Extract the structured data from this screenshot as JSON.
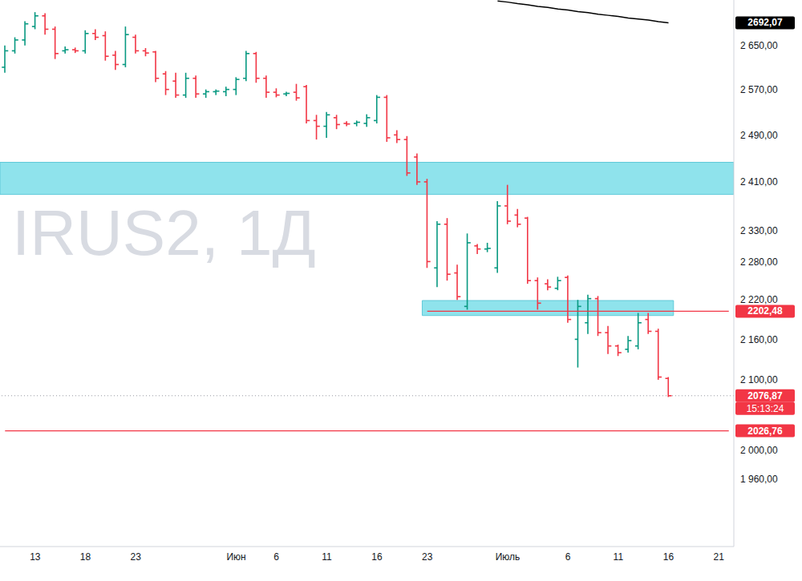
{
  "chart_data": {
    "type": "ohlc",
    "title": "IRUS2, 1Д",
    "categories": [
      null,
      null,
      null,
      "13",
      null,
      null,
      null,
      null,
      "18",
      null,
      null,
      null,
      null,
      "23",
      null,
      null,
      null,
      null,
      null,
      null,
      null,
      null,
      null,
      "Июн",
      null,
      null,
      null,
      "6",
      null,
      null,
      null,
      null,
      "11",
      null,
      null,
      null,
      null,
      "16",
      null,
      null,
      null,
      null,
      "23",
      null,
      null,
      null,
      null,
      null,
      null,
      null,
      "Июль",
      null,
      null,
      null,
      null,
      null,
      "6",
      null,
      null,
      null,
      null,
      "11",
      null,
      null,
      null,
      null,
      "16",
      null,
      null,
      null,
      null,
      "21",
      null
    ],
    "open": [
      2610,
      2640,
      2660,
      2685,
      2705,
      2680,
      2640,
      2642,
      2640,
      2672,
      2668,
      2632,
      2615,
      2665,
      2640,
      2638,
      2598,
      2585,
      2560,
      2590,
      2562,
      2566,
      2566,
      2570,
      2590,
      2635,
      2590,
      2565,
      2562,
      2565,
      2575,
      2515,
      2505,
      2520,
      2510,
      2510,
      2510,
      2515,
      2556,
      2490,
      2482,
      2452,
      2410,
      2270,
      2340,
      2262,
      2210,
      2305,
      2300,
      2270,
      2370,
      2355,
      2350,
      2250,
      2245,
      2238,
      2255,
      2160,
      2185,
      2222,
      2170,
      2150,
      2145,
      2150,
      2190,
      2172,
      2102,
      null,
      null,
      null,
      null,
      null,
      null
    ],
    "high": [
      2650,
      2665,
      2695,
      2712,
      2710,
      2685,
      2648,
      2646,
      2678,
      2680,
      2676,
      2640,
      2685,
      2670,
      2645,
      2640,
      2603,
      2600,
      2600,
      2595,
      2570,
      2570,
      2575,
      2592,
      2640,
      2638,
      2595,
      2572,
      2566,
      2580,
      2578,
      2525,
      2530,
      2525,
      2514,
      2515,
      2526,
      2560,
      2560,
      2498,
      2488,
      2458,
      2415,
      2345,
      2350,
      2275,
      2325,
      2308,
      2310,
      2378,
      2405,
      2365,
      2352,
      2255,
      2252,
      2256,
      2258,
      2220,
      2228,
      2226,
      2180,
      2152,
      2165,
      2200,
      2200,
      2176,
      2104,
      null,
      null,
      null,
      null,
      null,
      null
    ],
    "low": [
      2600,
      2635,
      2650,
      2680,
      2670,
      2625,
      2635,
      2636,
      2635,
      2660,
      2622,
      2605,
      2610,
      2635,
      2630,
      2583,
      2560,
      2555,
      2555,
      2555,
      2555,
      2560,
      2558,
      2560,
      2585,
      2582,
      2555,
      2556,
      2558,
      2550,
      2510,
      2482,
      2485,
      2500,
      2505,
      2505,
      2504,
      2510,
      2478,
      2476,
      2420,
      2405,
      2270,
      2240,
      2250,
      2220,
      2205,
      2292,
      2295,
      2262,
      2340,
      2335,
      2245,
      2205,
      2235,
      2235,
      2185,
      2118,
      2168,
      2165,
      2138,
      2135,
      2140,
      2145,
      2168,
      2100,
      2075,
      null,
      null,
      null,
      null,
      null,
      null
    ],
    "close": [
      2640,
      2660,
      2690,
      2705,
      2680,
      2635,
      2642,
      2640,
      2672,
      2665,
      2630,
      2615,
      2670,
      2640,
      2636,
      2590,
      2570,
      2560,
      2590,
      2562,
      2566,
      2567,
      2570,
      2588,
      2635,
      2590,
      2565,
      2560,
      2563,
      2555,
      2515,
      2505,
      2525,
      2508,
      2509,
      2512,
      2520,
      2556,
      2485,
      2482,
      2425,
      2410,
      2280,
      2340,
      2260,
      2225,
      2310,
      2300,
      2301,
      2370,
      2345,
      2340,
      2250,
      2215,
      2240,
      2250,
      2190,
      2210,
      2222,
      2170,
      2150,
      2140,
      2158,
      2185,
      2172,
      2104,
      2076.87,
      null,
      null,
      null,
      null,
      null,
      null
    ],
    "colors": {
      "up": "#089981",
      "down": "#f23645"
    },
    "ma": {
      "color": "#000000",
      "label": "2692,07",
      "values": [
        null,
        null,
        null,
        null,
        null,
        null,
        null,
        null,
        null,
        null,
        null,
        null,
        null,
        null,
        null,
        null,
        null,
        null,
        null,
        null,
        null,
        null,
        null,
        null,
        null,
        null,
        null,
        null,
        null,
        null,
        null,
        null,
        null,
        null,
        null,
        null,
        null,
        null,
        null,
        null,
        null,
        null,
        null,
        null,
        null,
        null,
        null,
        null,
        null,
        2733,
        2731,
        2728,
        2726,
        2723,
        2721,
        2718,
        2716,
        2713,
        2711,
        2708,
        2706,
        2704,
        2701,
        2699,
        2697,
        2694,
        2692.07,
        null,
        null,
        null,
        null,
        null,
        null
      ]
    },
    "zones": [
      {
        "from": 2389,
        "to": 2443,
        "start": 0,
        "end": 72,
        "color": "#8fe3ec"
      },
      {
        "from": 2196,
        "to": 2219,
        "start": 42,
        "end": 66,
        "color": "#8fe3ec"
      }
    ],
    "price_lines": [
      {
        "value": 2202.48,
        "label": "2202,48",
        "from": 42,
        "color": "#f23645"
      },
      {
        "value": 2026.76,
        "label": "2026,76",
        "from": 0,
        "color": "#f23645"
      }
    ],
    "last_price": {
      "value": 2076.87,
      "label": "2076,87",
      "countdown": "15:13:24",
      "color": "#f23645"
    },
    "ylim": [
      1870,
      2735
    ],
    "yticks": [
      {
        "value": 2650,
        "label": "2 650,00"
      },
      {
        "value": 2570,
        "label": "2 570,00"
      },
      {
        "value": 2490,
        "label": "2 490,00"
      },
      {
        "value": 2410,
        "label": "2 410,00"
      },
      {
        "value": 2330,
        "label": "2 330,00"
      },
      {
        "value": 2280,
        "label": "2 280,00"
      },
      {
        "value": 2220,
        "label": "2 220,00"
      },
      {
        "value": 2160,
        "label": "2 160,00"
      },
      {
        "value": 2100,
        "label": "2 100,00"
      },
      {
        "value": 2000,
        "label": "2 000,00"
      },
      {
        "value": 1960,
        "label": "1 960,00"
      }
    ],
    "log": "y",
    "grid": false
  }
}
